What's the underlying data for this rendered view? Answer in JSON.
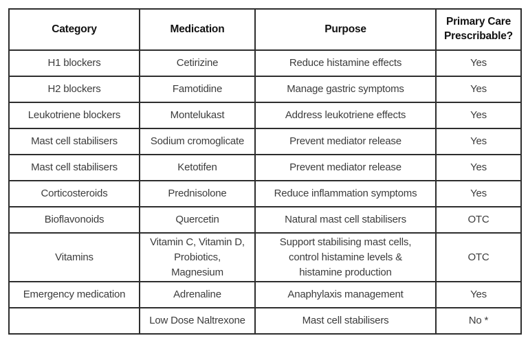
{
  "table": {
    "columns": [
      "Category",
      "Medication",
      "Purpose",
      "Primary Care Prescribable?"
    ],
    "rows": [
      [
        "H1 blockers",
        "Cetirizine",
        "Reduce histamine effects",
        "Yes"
      ],
      [
        "H2 blockers",
        "Famotidine",
        "Manage gastric symptoms",
        "Yes"
      ],
      [
        "Leukotriene blockers",
        "Montelukast",
        "Address leukotriene effects",
        "Yes"
      ],
      [
        "Mast cell stabilisers",
        "Sodium cromoglicate",
        "Prevent mediator release",
        "Yes"
      ],
      [
        "Mast cell stabilisers",
        "Ketotifen",
        "Prevent mediator release",
        "Yes"
      ],
      [
        "Corticosteroids",
        "Prednisolone",
        "Reduce inflammation symptoms",
        "Yes"
      ],
      [
        "Bioflavonoids",
        "Quercetin",
        "Natural mast cell stabilisers",
        "OTC"
      ],
      [
        "Vitamins",
        "Vitamin C, Vitamin D,\nProbiotics,\nMagnesium",
        "Support stabilising mast cells,\ncontrol histamine levels &\nhistamine production",
        "OTC"
      ],
      [
        "Emergency medication",
        "Adrenaline",
        "Anaphylaxis management",
        "Yes"
      ],
      [
        "",
        "Low Dose Naltrexone",
        "Mast cell stabilisers",
        "No *"
      ]
    ],
    "colors": {
      "border": "#2d2d2d",
      "header_text": "#111111",
      "body_text": "#3c3c3c",
      "background": "#ffffff"
    }
  }
}
